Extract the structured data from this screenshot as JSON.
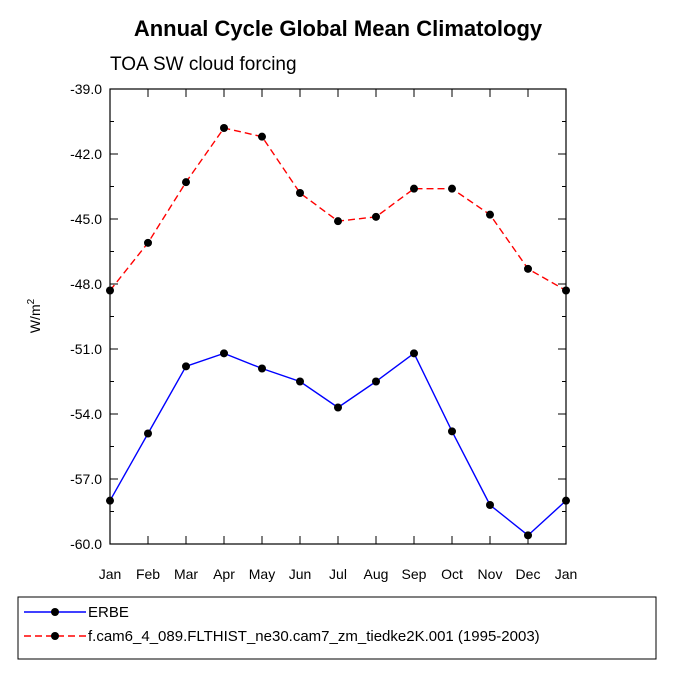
{
  "chart_data": {
    "type": "line",
    "title": "Annual Cycle Global Mean Climatology",
    "subtitle": "TOA SW cloud forcing",
    "ylabel_base": "W/m",
    "ylabel_sup": "2",
    "categories": [
      "Jan",
      "Feb",
      "Mar",
      "Apr",
      "May",
      "Jun",
      "Jul",
      "Aug",
      "Sep",
      "Oct",
      "Nov",
      "Dec",
      "Jan"
    ],
    "ylim": [
      -60.0,
      -39.0
    ],
    "yticks": [
      "-39.0",
      "-42.0",
      "-45.0",
      "-48.0",
      "-51.0",
      "-54.0",
      "-57.0",
      "-60.0"
    ],
    "ytick_values": [
      -39,
      -42,
      -45,
      -48,
      -51,
      -54,
      -57,
      -60
    ],
    "series": [
      {
        "name": "ERBE",
        "color": "#0000ff",
        "dash": "solid",
        "values": [
          -58.0,
          -54.9,
          -51.8,
          -51.2,
          -51.9,
          -52.5,
          -53.7,
          -52.5,
          -51.2,
          -54.8,
          -58.2,
          -59.6,
          -58.0
        ]
      },
      {
        "name": "f.cam6_4_089.FLTHIST_ne30.cam7_zm_tiedke2K.001 (1995-2003)",
        "color": "#ff0000",
        "dash": "dashed",
        "values": [
          -48.3,
          -46.1,
          -43.3,
          -40.8,
          -41.2,
          -43.8,
          -45.1,
          -44.9,
          -43.6,
          -43.6,
          -44.8,
          -47.3,
          -48.3
        ]
      }
    ]
  }
}
